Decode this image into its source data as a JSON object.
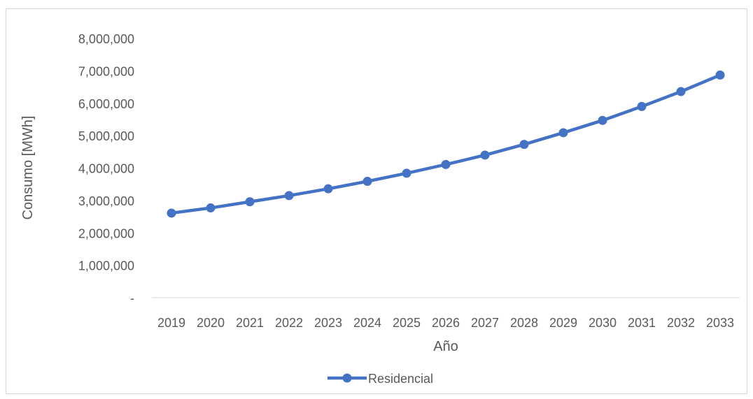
{
  "chart_data": {
    "type": "line",
    "xlabel": "Año",
    "ylabel": "Consumo [MWh]",
    "categories": [
      "2019",
      "2020",
      "2021",
      "2022",
      "2023",
      "2024",
      "2025",
      "2026",
      "2027",
      "2028",
      "2029",
      "2030",
      "2031",
      "2032",
      "2033"
    ],
    "series": [
      {
        "name": "Residencial",
        "values": [
          2610000,
          2770000,
          2960000,
          3150000,
          3360000,
          3590000,
          3840000,
          4110000,
          4400000,
          4730000,
          5090000,
          5470000,
          5900000,
          6360000,
          6870000
        ],
        "color": "#4472C4"
      }
    ],
    "ylim": [
      0,
      8000000
    ],
    "yticks": [
      0,
      1000000,
      2000000,
      3000000,
      4000000,
      5000000,
      6000000,
      7000000,
      8000000
    ],
    "ytick_labels": [
      "-",
      "1,000,000",
      "2,000,000",
      "3,000,000",
      "4,000,000",
      "5,000,000",
      "6,000,000",
      "7,000,000",
      "8,000,000"
    ],
    "grid": false,
    "legend": "bottom"
  }
}
